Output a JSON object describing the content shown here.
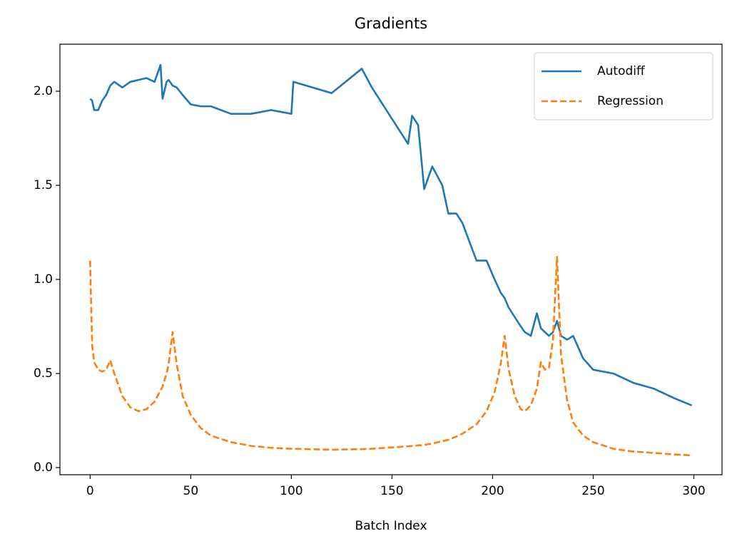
{
  "chart_data": {
    "type": "line",
    "title": "Gradients",
    "x_label": "Batch Index",
    "x": [
      0,
      1,
      2,
      4,
      6,
      8,
      10,
      12,
      16,
      20,
      24,
      28,
      32,
      35,
      36,
      38,
      39,
      41,
      43,
      46,
      50,
      55,
      60,
      70,
      80,
      90,
      100,
      101,
      120,
      135,
      140,
      158,
      160,
      163,
      166,
      170,
      175,
      178,
      182,
      185,
      192,
      197,
      201,
      204,
      206,
      208,
      211,
      214,
      216,
      219,
      222,
      224,
      226,
      228,
      230,
      232,
      234,
      237,
      240,
      245,
      250,
      260,
      270,
      280,
      290,
      299
    ],
    "series": [
      {
        "name": "Autodiff",
        "color": "#1f77b4",
        "dash": "solid",
        "values": [
          1.96,
          1.95,
          1.9,
          1.9,
          1.95,
          1.98,
          2.03,
          2.05,
          2.02,
          2.05,
          2.06,
          2.07,
          2.05,
          2.14,
          1.96,
          2.05,
          2.06,
          2.03,
          2.02,
          1.98,
          1.93,
          1.92,
          1.92,
          1.88,
          1.88,
          1.9,
          1.88,
          2.05,
          1.99,
          2.12,
          2.02,
          1.72,
          1.87,
          1.82,
          1.48,
          1.6,
          1.5,
          1.35,
          1.35,
          1.3,
          1.1,
          1.1,
          1.0,
          0.93,
          0.9,
          0.85,
          0.8,
          0.75,
          0.72,
          0.7,
          0.82,
          0.74,
          0.72,
          0.7,
          0.72,
          0.78,
          0.7,
          0.68,
          0.7,
          0.58,
          0.52,
          0.5,
          0.45,
          0.42,
          0.37,
          0.33
        ]
      },
      {
        "name": "Regression",
        "color": "#ff7f0e",
        "dash": "dashed",
        "values": [
          1.1,
          0.65,
          0.56,
          0.52,
          0.51,
          0.52,
          0.57,
          0.5,
          0.38,
          0.32,
          0.3,
          0.31,
          0.35,
          0.41,
          0.43,
          0.5,
          0.55,
          0.72,
          0.55,
          0.38,
          0.28,
          0.21,
          0.17,
          0.135,
          0.115,
          0.105,
          0.1,
          0.1,
          0.095,
          0.098,
          0.1,
          0.113,
          0.115,
          0.118,
          0.12,
          0.128,
          0.14,
          0.148,
          0.165,
          0.18,
          0.23,
          0.3,
          0.4,
          0.55,
          0.7,
          0.52,
          0.38,
          0.31,
          0.3,
          0.33,
          0.42,
          0.56,
          0.52,
          0.53,
          0.68,
          1.12,
          0.6,
          0.36,
          0.24,
          0.17,
          0.135,
          0.1,
          0.085,
          0.078,
          0.07,
          0.065
        ]
      }
    ],
    "xlim": [
      -15,
      314
    ],
    "xticks": [
      0,
      50,
      100,
      150,
      200,
      250,
      300
    ],
    "ylim": [
      -0.038,
      2.25
    ],
    "yticks": [
      {
        "value": 0,
        "label": "0.0"
      },
      0.5,
      {
        "value": 1,
        "label": "1.0"
      },
      1.5,
      {
        "value": 2,
        "label": "2.0"
      }
    ],
    "grid": false,
    "legend": "upper right"
  }
}
